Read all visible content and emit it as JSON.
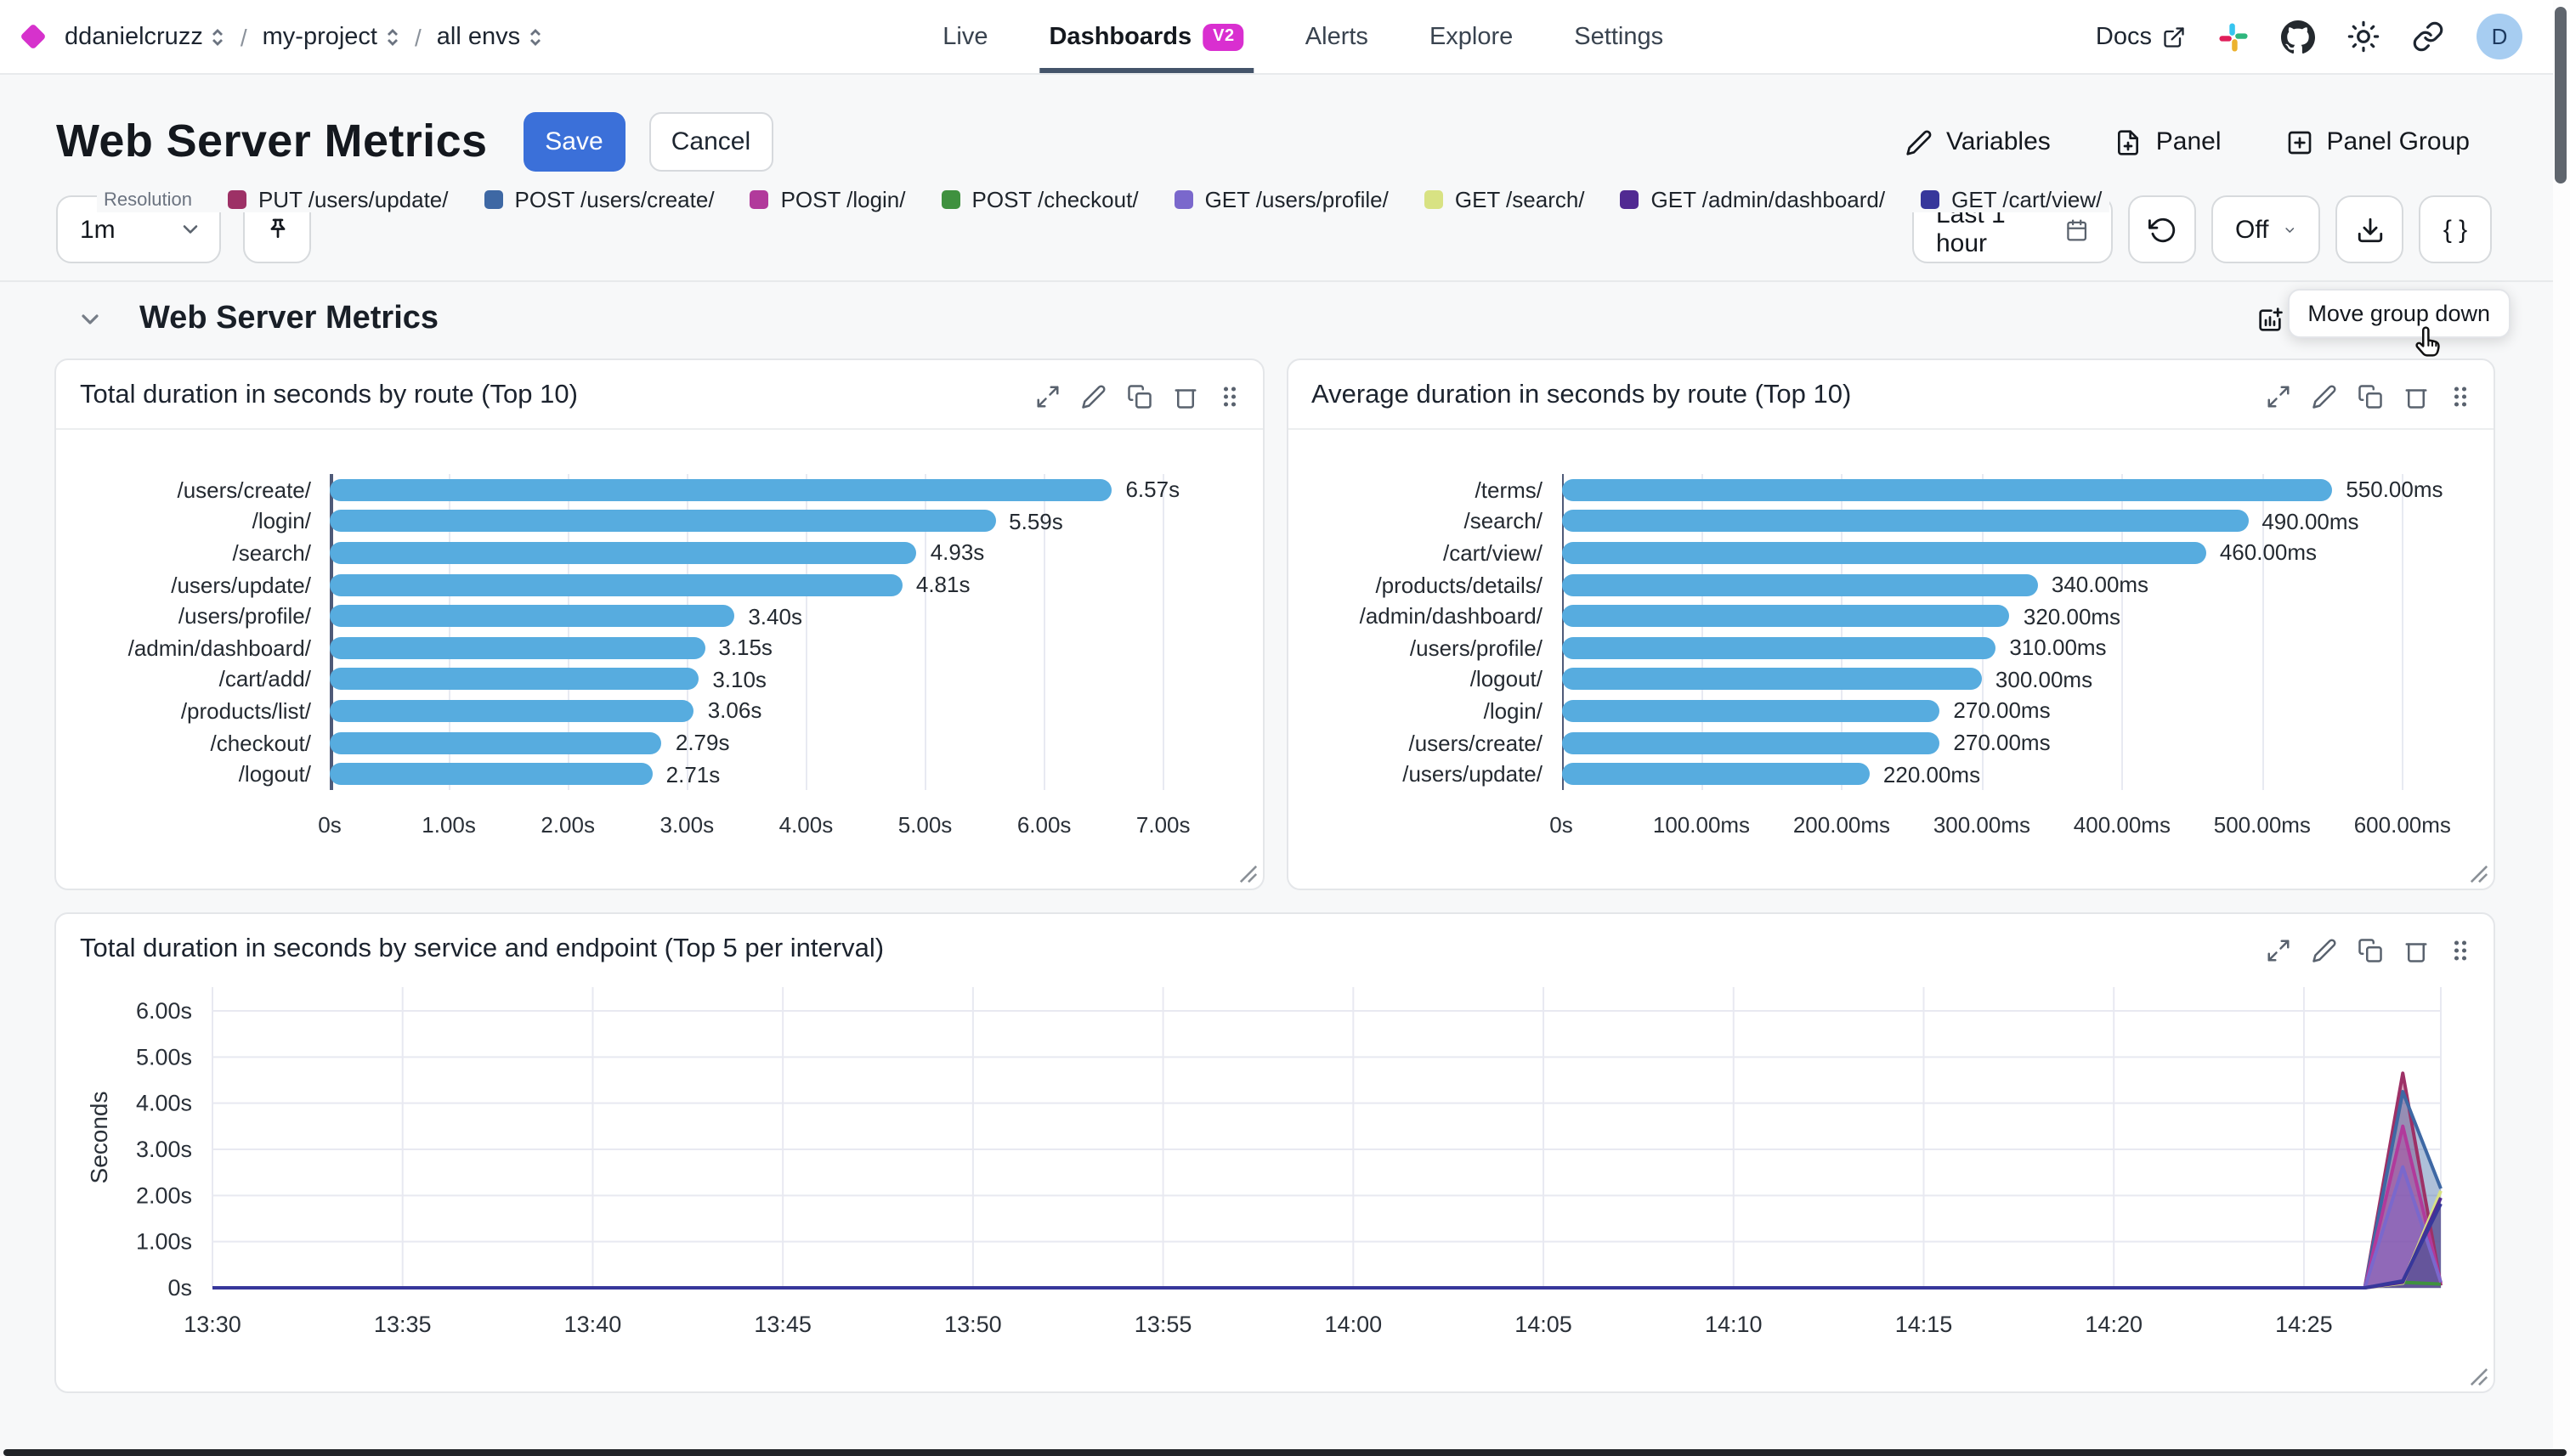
{
  "header": {
    "breadcrumbs": [
      "ddanielcruzz",
      "my-project",
      "all envs"
    ],
    "nav": [
      {
        "label": "Live"
      },
      {
        "label": "Dashboards",
        "badge": "V2",
        "active": true
      },
      {
        "label": "Alerts"
      },
      {
        "label": "Explore"
      },
      {
        "label": "Settings"
      }
    ],
    "docs": "Docs",
    "avatar": "D"
  },
  "toolbar": {
    "title": "Web Server Metrics",
    "save": "Save",
    "cancel": "Cancel",
    "variables": "Variables",
    "panel": "Panel",
    "panel_group": "Panel Group"
  },
  "controls": {
    "resolution_label": "Resolution",
    "resolution_value": "1m",
    "time_range": "Last 1 hour",
    "auto_refresh": "Off",
    "braces": "{ }"
  },
  "tooltip": "Move group down",
  "group": {
    "title": "Web Server Metrics"
  },
  "colors": {
    "accent_blue": "#3b70d9",
    "badge_magenta": "#d92fd0",
    "brand_diamond": "#d632cc",
    "bar_blue": "#57acdf"
  },
  "icons": [
    "sort-chevrons",
    "external-link",
    "slack",
    "github",
    "sun",
    "link",
    "pencil",
    "file-plus",
    "square-plus",
    "calendar",
    "rotate-ccw",
    "chevron-down",
    "download",
    "pin",
    "chart-add",
    "trash",
    "arrow-down",
    "arrow-up",
    "expand",
    "copy",
    "grip-dots",
    "resize-corner",
    "hand-cursor"
  ],
  "chart_data": [
    {
      "type": "bar",
      "title": "Total duration in seconds by route (Top 10)",
      "orientation": "horizontal",
      "bar_color": "#57acdf",
      "categories": [
        "/users/create/",
        "/login/",
        "/search/",
        "/users/update/",
        "/users/profile/",
        "/admin/dashboard/",
        "/cart/add/",
        "/products/list/",
        "/checkout/",
        "/logout/"
      ],
      "values": [
        6.57,
        5.59,
        4.93,
        4.81,
        3.4,
        3.15,
        3.1,
        3.06,
        2.79,
        2.71
      ],
      "value_labels": [
        "6.57s",
        "5.59s",
        "4.93s",
        "4.81s",
        "3.40s",
        "3.15s",
        "3.10s",
        "3.06s",
        "2.79s",
        "2.71s"
      ],
      "xlim": [
        0,
        7.63
      ],
      "ticks": [
        {
          "v": 0,
          "label": "0s"
        },
        {
          "v": 1,
          "label": "1.00s"
        },
        {
          "v": 2,
          "label": "2.00s"
        },
        {
          "v": 3,
          "label": "3.00s"
        },
        {
          "v": 4,
          "label": "4.00s"
        },
        {
          "v": 5,
          "label": "5.00s"
        },
        {
          "v": 6,
          "label": "6.00s"
        },
        {
          "v": 7,
          "label": "7.00s"
        }
      ]
    },
    {
      "type": "bar",
      "title": "Average duration in seconds by route (Top 10)",
      "orientation": "horizontal",
      "bar_color": "#57acdf",
      "categories": [
        "/terms/",
        "/search/",
        "/cart/view/",
        "/products/details/",
        "/admin/dashboard/",
        "/users/profile/",
        "/logout/",
        "/login/",
        "/users/create/",
        "/users/update/"
      ],
      "values": [
        550,
        490,
        460,
        340,
        320,
        310,
        300,
        270,
        270,
        220
      ],
      "value_labels": [
        "550.00ms",
        "490.00ms",
        "460.00ms",
        "340.00ms",
        "320.00ms",
        "310.00ms",
        "300.00ms",
        "270.00ms",
        "270.00ms",
        "220.00ms"
      ],
      "xlim": [
        0,
        648
      ],
      "ticks": [
        {
          "v": 0,
          "label": "0s"
        },
        {
          "v": 100,
          "label": "100.00ms"
        },
        {
          "v": 200,
          "label": "200.00ms"
        },
        {
          "v": 300,
          "label": "300.00ms"
        },
        {
          "v": 400,
          "label": "400.00ms"
        },
        {
          "v": 500,
          "label": "500.00ms"
        },
        {
          "v": 600,
          "label": "600.00ms"
        }
      ]
    },
    {
      "type": "area",
      "title": "Total duration in seconds by service and endpoint (Top 5 per interval)",
      "ylabel": "Seconds",
      "ylim": [
        0,
        6.5
      ],
      "y_ticks": [
        {
          "v": 0,
          "label": "0s"
        },
        {
          "v": 1,
          "label": "1.00s"
        },
        {
          "v": 2,
          "label": "2.00s"
        },
        {
          "v": 3,
          "label": "3.00s"
        },
        {
          "v": 4,
          "label": "4.00s"
        },
        {
          "v": 5,
          "label": "5.00s"
        },
        {
          "v": 6,
          "label": "6.00s"
        }
      ],
      "x_ticks": [
        "13:30",
        "13:35",
        "13:40",
        "13:45",
        "13:50",
        "13:55",
        "14:00",
        "14:05",
        "14:10",
        "14:15",
        "14:20",
        "14:25"
      ],
      "x_tick_interval_min": 5,
      "x_domain_min": [
        0,
        58.6
      ],
      "series": [
        {
          "name": "PUT /users/update/",
          "color": "#9d3166",
          "points": [
            [
              0,
              0
            ],
            [
              56.6,
              0
            ],
            [
              57.6,
              4.65
            ],
            [
              58.6,
              0.05
            ]
          ]
        },
        {
          "name": "POST /users/create/",
          "color": "#3e68a4",
          "points": [
            [
              0,
              0
            ],
            [
              56.6,
              0
            ],
            [
              57.6,
              4.25
            ],
            [
              58.6,
              2.15
            ]
          ]
        },
        {
          "name": "POST /login/",
          "color": "#b13a9b",
          "points": [
            [
              0,
              0
            ],
            [
              56.6,
              0
            ],
            [
              57.6,
              3.5
            ],
            [
              58.6,
              0.1
            ]
          ]
        },
        {
          "name": "POST /checkout/",
          "color": "#3f913f",
          "points": [
            [
              0,
              0
            ],
            [
              56.6,
              0
            ],
            [
              57.6,
              0.12
            ],
            [
              58.6,
              0.08
            ]
          ]
        },
        {
          "name": "GET /users/profile/",
          "color": "#7a68cc",
          "points": [
            [
              0,
              0
            ],
            [
              56.6,
              0
            ],
            [
              57.6,
              2.62
            ],
            [
              58.6,
              0.12
            ]
          ]
        },
        {
          "name": "GET /search/",
          "color": "#d8e283",
          "points": [
            [
              0,
              0
            ],
            [
              56.6,
              0
            ],
            [
              57.6,
              0.1
            ],
            [
              58.6,
              2.1
            ]
          ]
        },
        {
          "name": "GET /admin/dashboard/",
          "color": "#512a92",
          "points": [
            [
              0,
              0
            ],
            [
              56.6,
              0
            ],
            [
              57.6,
              0.12
            ],
            [
              58.6,
              1.95
            ]
          ]
        },
        {
          "name": "GET /cart/view/",
          "color": "#37379b",
          "points": [
            [
              0,
              0
            ],
            [
              56.6,
              0
            ],
            [
              57.6,
              0.15
            ],
            [
              58.6,
              1.82
            ]
          ]
        }
      ]
    }
  ]
}
